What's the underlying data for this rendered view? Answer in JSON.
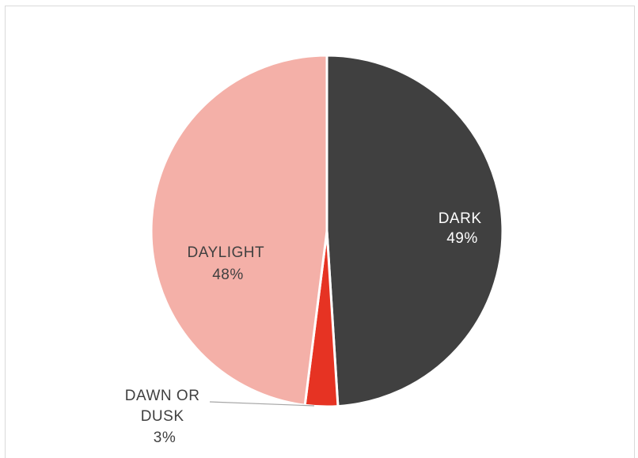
{
  "chart_data": {
    "type": "pie",
    "slices": [
      {
        "name": "DARK",
        "value": 49,
        "pct_label": "49%",
        "color": "#404040",
        "label_color": "#ffffff"
      },
      {
        "name": "DAWN OR DUSK",
        "value": 3,
        "pct_label": "3%",
        "color": "#e63323",
        "label_color": "#404040"
      },
      {
        "name": "DAYLIGHT",
        "value": 48,
        "pct_label": "48%",
        "color": "#f4b0a8",
        "label_color": "#404040"
      }
    ],
    "start": "top",
    "direction": "clockwise",
    "legend": "none"
  }
}
